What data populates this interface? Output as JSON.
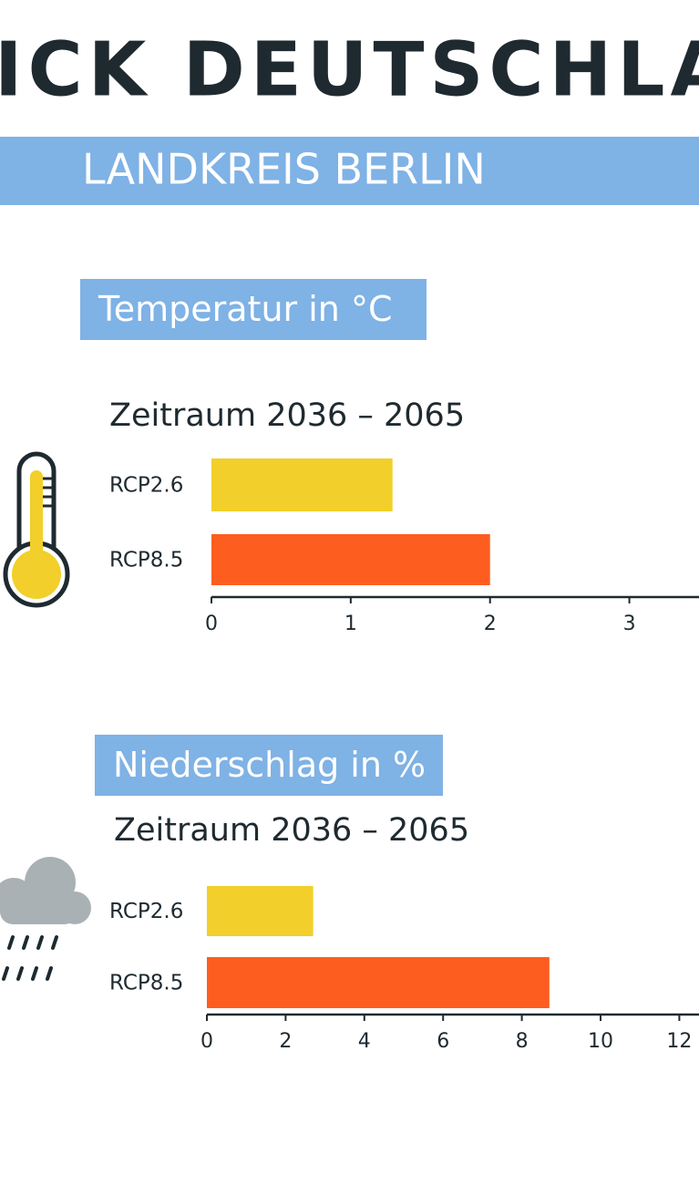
{
  "header": {
    "title": "ICK DEUTSCHLA",
    "subtitle": "LANDKREIS BERLIN"
  },
  "chart_data": [
    {
      "type": "bar",
      "orientation": "horizontal",
      "title": "Temperatur in °C",
      "subtitle": "Zeitraum 2036 – 2065",
      "categories": [
        "RCP2.6",
        "RCP8.5"
      ],
      "values": [
        1.3,
        2.0
      ],
      "colors": [
        "#f2cf2a",
        "#fd5e1f"
      ],
      "xlim": [
        0,
        3.5
      ],
      "xticks": [
        0,
        1,
        2,
        3
      ]
    },
    {
      "type": "bar",
      "orientation": "horizontal",
      "title": "Niederschlag in %",
      "subtitle": "Zeitraum 2036 – 2065",
      "categories": [
        "RCP2.6",
        "RCP8.5"
      ],
      "values": [
        2.7,
        8.7
      ],
      "colors": [
        "#f2cf2a",
        "#fd5e1f"
      ],
      "xlim": [
        0,
        12.5
      ],
      "xticks": [
        0,
        2,
        4,
        6,
        8,
        10,
        12
      ]
    }
  ]
}
